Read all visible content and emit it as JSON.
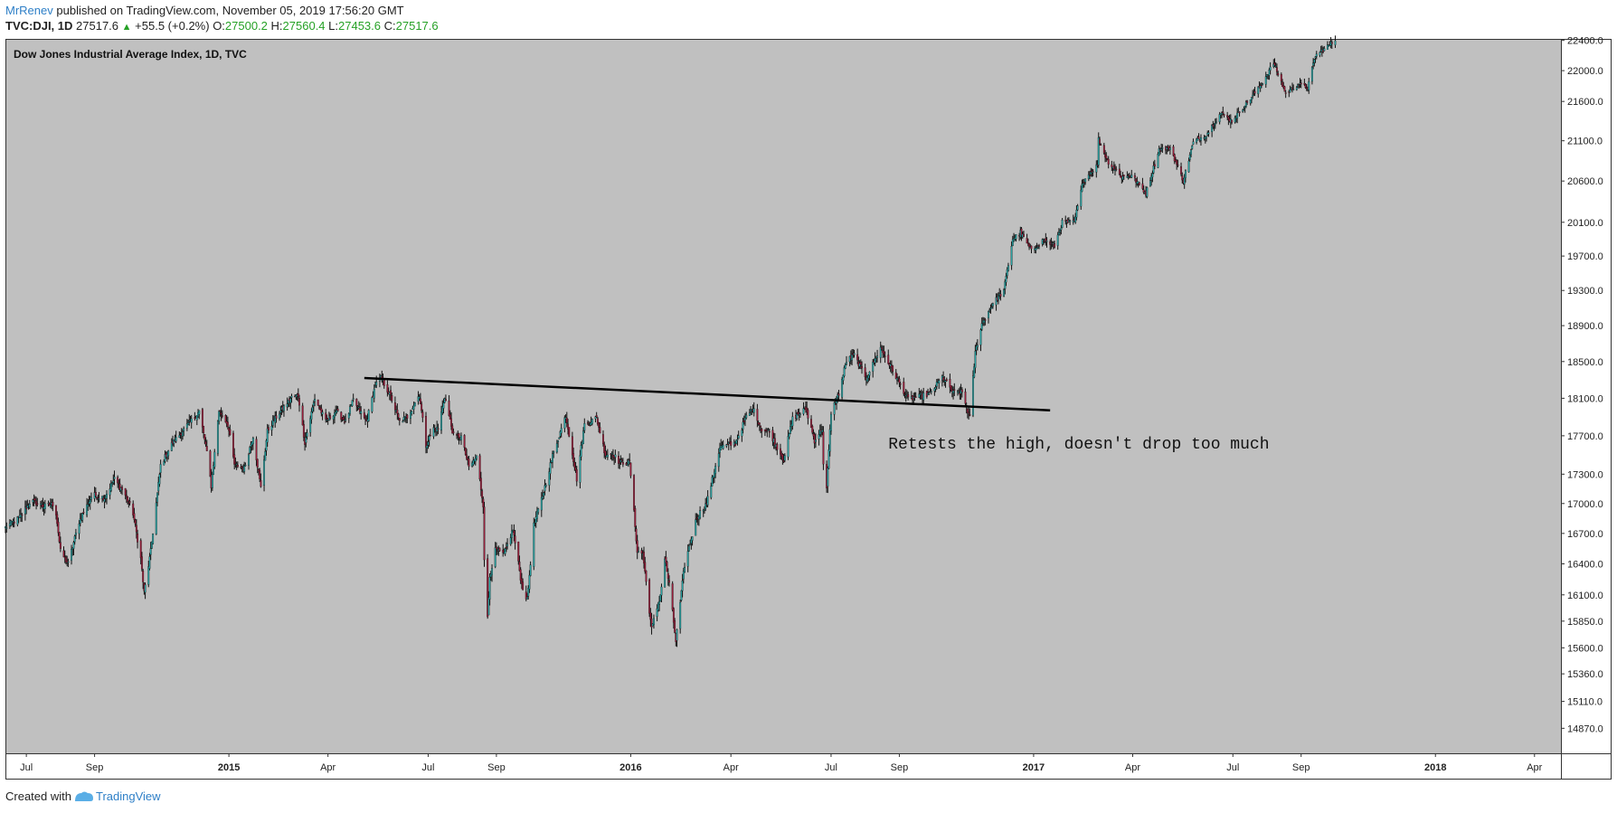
{
  "header": {
    "author": "MrRenev",
    "published_text": "published on TradingView.com, November 05, 2019 17:56:20 GMT",
    "symbol": "TVC:DJI, 1D",
    "last": "27517.6",
    "change": "+55.5 (+0.2%)",
    "open_label": "O:",
    "open": "27500.2",
    "high_label": "H:",
    "high": "27560.4",
    "low_label": "L:",
    "low": "27453.6",
    "close_label": "C:",
    "close": "27517.6"
  },
  "footer": {
    "created_with": "Created with",
    "brand": "TradingView"
  },
  "colors": {
    "background": "#c0c0c0",
    "up_candle": "#2aa3a3",
    "down_candle": "#9a1f3c",
    "wick": "#111111",
    "link": "#2e7fc7",
    "positive": "#26a126"
  },
  "chart_data": {
    "type": "candlestick",
    "title": "Dow Jones Industrial Average Index, 1D, TVC",
    "y_ticks": [
      22400,
      22000,
      21600,
      21100,
      20600,
      20100,
      19700,
      19300,
      18900,
      18500,
      18100,
      17700,
      17300,
      17000,
      16700,
      16400,
      16100,
      15850,
      15600,
      15360,
      15110,
      14870
    ],
    "y_tick_labels": [
      "22400.0",
      "22000.0",
      "21600.0",
      "21100.0",
      "20600.0",
      "20100.0",
      "19700.0",
      "19300.0",
      "18900.0",
      "18500.0",
      "18100.0",
      "17700.0",
      "17300.0",
      "17000.0",
      "16700.0",
      "16400.0",
      "16100.0",
      "15850.0",
      "15600.0",
      "15360.0",
      "15110.0",
      "14870.0"
    ],
    "x_ticks": [
      {
        "date": "2014-07-01",
        "label": "Jul",
        "bold": false
      },
      {
        "date": "2014-09-01",
        "label": "Sep",
        "bold": false
      },
      {
        "date": "2015-01-01",
        "label": "2015",
        "bold": true
      },
      {
        "date": "2015-04-01",
        "label": "Apr",
        "bold": false
      },
      {
        "date": "2015-07-01",
        "label": "Jul",
        "bold": false
      },
      {
        "date": "2015-09-01",
        "label": "Sep",
        "bold": false
      },
      {
        "date": "2016-01-01",
        "label": "2016",
        "bold": true
      },
      {
        "date": "2016-04-01",
        "label": "Apr",
        "bold": false
      },
      {
        "date": "2016-07-01",
        "label": "Jul",
        "bold": false
      },
      {
        "date": "2016-09-01",
        "label": "Sep",
        "bold": false
      },
      {
        "date": "2017-01-01",
        "label": "2017",
        "bold": true
      },
      {
        "date": "2017-04-01",
        "label": "Apr",
        "bold": false
      },
      {
        "date": "2017-07-01",
        "label": "Jul",
        "bold": false
      },
      {
        "date": "2017-09-01",
        "label": "Sep",
        "bold": false
      },
      {
        "date": "2018-01-01",
        "label": "2018",
        "bold": true
      },
      {
        "date": "2018-04-01",
        "label": "Apr",
        "bold": false
      }
    ],
    "x_range": [
      "2014-06-12",
      "2018-04-25"
    ],
    "y_range": [
      14650,
      22420
    ],
    "price_path": [
      [
        "2014-06-12",
        16760
      ],
      [
        "2014-06-25",
        16860
      ],
      [
        "2014-07-05",
        17030
      ],
      [
        "2014-07-17",
        16970
      ],
      [
        "2014-07-27",
        17000
      ],
      [
        "2014-08-01",
        16520
      ],
      [
        "2014-08-08",
        16400
      ],
      [
        "2014-08-18",
        16820
      ],
      [
        "2014-08-30",
        17090
      ],
      [
        "2014-09-10",
        17060
      ],
      [
        "2014-09-19",
        17250
      ],
      [
        "2014-09-28",
        17110
      ],
      [
        "2014-10-06",
        16900
      ],
      [
        "2014-10-13",
        16450
      ],
      [
        "2014-10-16",
        16120
      ],
      [
        "2014-10-22",
        16520
      ],
      [
        "2014-10-31",
        17390
      ],
      [
        "2014-11-10",
        17610
      ],
      [
        "2014-11-22",
        17780
      ],
      [
        "2014-12-01",
        17900
      ],
      [
        "2014-12-05",
        17960
      ],
      [
        "2014-12-11",
        17600
      ],
      [
        "2014-12-16",
        17180
      ],
      [
        "2014-12-23",
        17970
      ],
      [
        "2014-12-31",
        17820
      ],
      [
        "2015-01-06",
        17400
      ],
      [
        "2015-01-15",
        17360
      ],
      [
        "2015-01-23",
        17700
      ],
      [
        "2015-01-30",
        17160
      ],
      [
        "2015-02-05",
        17750
      ],
      [
        "2015-02-13",
        17900
      ],
      [
        "2015-02-27",
        18110
      ],
      [
        "2015-03-05",
        18130
      ],
      [
        "2015-03-11",
        17630
      ],
      [
        "2015-03-20",
        18100
      ],
      [
        "2015-03-30",
        17850
      ],
      [
        "2015-04-08",
        17960
      ],
      [
        "2015-04-17",
        17850
      ],
      [
        "2015-04-24",
        18080
      ],
      [
        "2015-05-06",
        17850
      ],
      [
        "2015-05-14",
        18240
      ],
      [
        "2015-05-19",
        18320
      ],
      [
        "2015-05-28",
        18120
      ],
      [
        "2015-06-05",
        17850
      ],
      [
        "2015-06-12",
        17900
      ],
      [
        "2015-06-23",
        18140
      ],
      [
        "2015-06-29",
        17600
      ],
      [
        "2015-07-06",
        17780
      ],
      [
        "2015-07-10",
        17770
      ],
      [
        "2015-07-16",
        18120
      ],
      [
        "2015-07-24",
        17700
      ],
      [
        "2015-07-31",
        17690
      ],
      [
        "2015-08-07",
        17370
      ],
      [
        "2015-08-14",
        17480
      ],
      [
        "2015-08-20",
        16990
      ],
      [
        "2015-08-21",
        16460
      ],
      [
        "2015-08-24",
        15870
      ],
      [
        "2015-08-26",
        16280
      ],
      [
        "2015-08-31",
        16530
      ],
      [
        "2015-09-08",
        16490
      ],
      [
        "2015-09-16",
        16740
      ],
      [
        "2015-09-24",
        16200
      ],
      [
        "2015-09-29",
        16050
      ],
      [
        "2015-10-05",
        16780
      ],
      [
        "2015-10-13",
        17080
      ],
      [
        "2015-10-22",
        17490
      ],
      [
        "2015-11-03",
        17920
      ],
      [
        "2015-11-13",
        17250
      ],
      [
        "2015-11-20",
        17820
      ],
      [
        "2015-12-01",
        17890
      ],
      [
        "2015-12-09",
        17500
      ],
      [
        "2015-12-15",
        17520
      ],
      [
        "2015-12-22",
        17420
      ],
      [
        "2015-12-31",
        17420
      ],
      [
        "2016-01-07",
        16520
      ],
      [
        "2016-01-12",
        16500
      ],
      [
        "2016-01-20",
        15770
      ],
      [
        "2016-01-28",
        16100
      ],
      [
        "2016-02-01",
        16450
      ],
      [
        "2016-02-05",
        16200
      ],
      [
        "2016-02-11",
        15660
      ],
      [
        "2016-02-19",
        16390
      ],
      [
        "2016-03-01",
        16860
      ],
      [
        "2016-03-10",
        17000
      ],
      [
        "2016-03-22",
        17580
      ],
      [
        "2016-04-05",
        17620
      ],
      [
        "2016-04-15",
        17900
      ],
      [
        "2016-04-21",
        17990
      ],
      [
        "2016-04-29",
        17770
      ],
      [
        "2016-05-06",
        17740
      ],
      [
        "2016-05-19",
        17450
      ],
      [
        "2016-05-27",
        17880
      ],
      [
        "2016-06-08",
        17990
      ],
      [
        "2016-06-16",
        17650
      ],
      [
        "2016-06-23",
        17780
      ],
      [
        "2016-06-24",
        17400
      ],
      [
        "2016-06-27",
        17140
      ],
      [
        "2016-07-01",
        17950
      ],
      [
        "2016-07-08",
        18150
      ],
      [
        "2016-07-15",
        18510
      ],
      [
        "2016-07-22",
        18570
      ],
      [
        "2016-08-02",
        18320
      ],
      [
        "2016-08-15",
        18650
      ],
      [
        "2016-08-26",
        18400
      ],
      [
        "2016-09-09",
        18090
      ],
      [
        "2016-09-20",
        18120
      ],
      [
        "2016-09-29",
        18150
      ],
      [
        "2016-10-10",
        18330
      ],
      [
        "2016-10-20",
        18160
      ],
      [
        "2016-10-28",
        18160
      ],
      [
        "2016-11-04",
        17890
      ],
      [
        "2016-11-09",
        18600
      ],
      [
        "2016-11-15",
        18920
      ],
      [
        "2016-11-25",
        19150
      ],
      [
        "2016-12-05",
        19300
      ],
      [
        "2016-12-13",
        19900
      ],
      [
        "2016-12-20",
        19980
      ],
      [
        "2016-12-30",
        19760
      ],
      [
        "2017-01-10",
        19890
      ],
      [
        "2017-01-20",
        19820
      ],
      [
        "2017-01-27",
        20100
      ],
      [
        "2017-02-07",
        20100
      ],
      [
        "2017-02-15",
        20600
      ],
      [
        "2017-02-28",
        20800
      ],
      [
        "2017-03-01",
        21120
      ],
      [
        "2017-03-09",
        20850
      ],
      [
        "2017-03-22",
        20650
      ],
      [
        "2017-03-31",
        20670
      ],
      [
        "2017-04-13",
        20450
      ],
      [
        "2017-04-25",
        20990
      ],
      [
        "2017-05-05",
        21010
      ],
      [
        "2017-05-17",
        20600
      ],
      [
        "2017-05-26",
        21080
      ],
      [
        "2017-06-07",
        21180
      ],
      [
        "2017-06-20",
        21450
      ],
      [
        "2017-06-30",
        21350
      ],
      [
        "2017-07-12",
        21550
      ],
      [
        "2017-07-26",
        21800
      ],
      [
        "2017-08-07",
        22100
      ],
      [
        "2017-08-18",
        21700
      ],
      [
        "2017-08-29",
        21820
      ],
      [
        "2017-09-07",
        21780
      ],
      [
        "2017-09-14",
        22200
      ],
      [
        "2017-09-25",
        22320
      ],
      [
        "2017-10-03",
        22420
      ]
    ],
    "trendline": {
      "start": [
        "2015-05-04",
        18320
      ],
      "end": [
        "2017-01-16",
        17970
      ]
    },
    "annotation": {
      "text": "Retests the high, doesn't drop too much",
      "at": [
        "2016-08-22",
        17565
      ]
    }
  }
}
